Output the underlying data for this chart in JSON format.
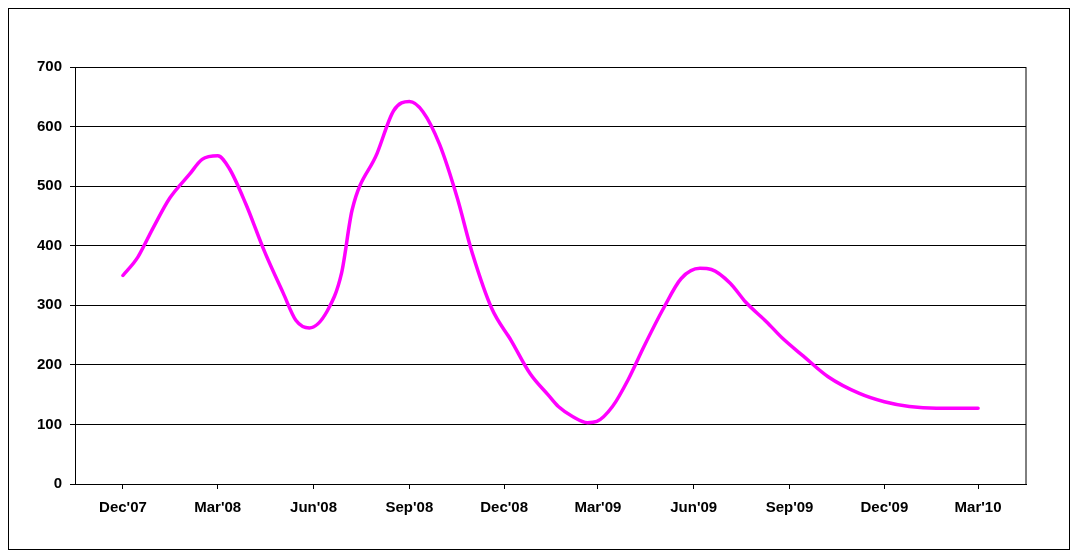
{
  "chart_data": {
    "type": "line",
    "x": [
      "2007-12-01",
      "2007-12-15",
      "2007-12-30",
      "2008-01-15",
      "2008-02-03",
      "2008-02-15",
      "2008-03-01",
      "2008-03-12",
      "2008-03-28",
      "2008-04-15",
      "2008-05-03",
      "2008-05-15",
      "2008-05-28",
      "2008-06-14",
      "2008-06-28",
      "2008-07-08",
      "2008-08-01",
      "2008-08-17",
      "2008-09-01",
      "2008-09-14",
      "2008-09-30",
      "2008-10-17",
      "2008-10-31",
      "2008-11-19",
      "2008-12-08",
      "2008-12-26",
      "2009-01-12",
      "2009-01-22",
      "2009-02-05",
      "2009-02-19",
      "2009-02-28",
      "2009-03-15",
      "2009-03-30",
      "2009-04-14",
      "2009-05-03",
      "2009-05-20",
      "2009-06-07",
      "2009-06-18",
      "2009-07-06",
      "2009-07-21",
      "2009-08-10",
      "2009-08-25",
      "2009-09-14",
      "2009-10-08",
      "2009-11-07",
      "2009-12-01",
      "2009-12-25",
      "2010-01-20",
      "2010-03-01"
    ],
    "series": [
      {
        "color": "#ff00ff",
        "values": [
          350,
          380,
          430,
          480,
          520,
          545,
          551,
          530,
          470,
          390,
          320,
          275,
          262,
          290,
          355,
          460,
          555,
          627,
          642,
          625,
          570,
          480,
          390,
          295,
          240,
          185,
          150,
          130,
          113,
          103,
          105,
          130,
          175,
          230,
          295,
          345,
          362,
          360,
          337,
          305,
          272,
          245,
          215,
          180,
          152,
          138,
          130,
          127,
          127
        ]
      }
    ],
    "xlim": [
      "2007-10-16",
      "2010-04-16"
    ],
    "xticks": [
      {
        "value": "2007-12-01",
        "label": "Dec'07"
      },
      {
        "value": "2008-03-01",
        "label": "Mar'08"
      },
      {
        "value": "2008-06-01",
        "label": "Jun'08"
      },
      {
        "value": "2008-09-01",
        "label": "Sep'08"
      },
      {
        "value": "2008-12-01",
        "label": "Dec'08"
      },
      {
        "value": "2009-03-01",
        "label": "Mar'09"
      },
      {
        "value": "2009-06-01",
        "label": "Jun'09"
      },
      {
        "value": "2009-09-01",
        "label": "Sep'09"
      },
      {
        "value": "2009-12-01",
        "label": "Dec'09"
      },
      {
        "value": "2010-03-01",
        "label": "Mar'10"
      }
    ],
    "ylim": [
      0,
      700
    ],
    "yticks": [
      0,
      100,
      200,
      300,
      400,
      500,
      600,
      700
    ],
    "grid": "y",
    "legend": false,
    "marker": "none",
    "line_style": "solid"
  }
}
